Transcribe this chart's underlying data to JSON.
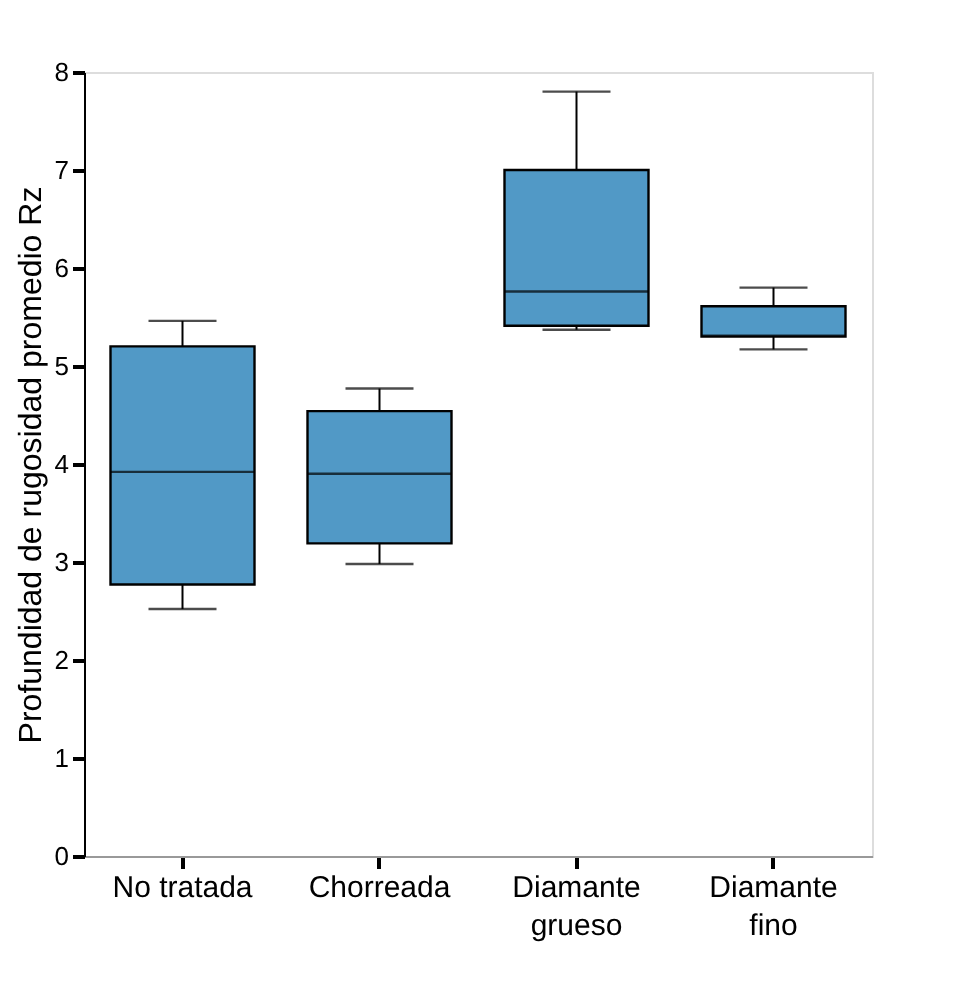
{
  "chart_data": {
    "type": "box",
    "ylabel": "Profundidad de rugosidad promedio Rz",
    "categories": [
      "No tratada",
      "Chorreada",
      "Diamante\ngrueso",
      "Diamante\nfino"
    ],
    "color": "#5199c6",
    "ylim": [
      0,
      8
    ],
    "yticks": [
      0,
      1,
      2,
      3,
      4,
      5,
      6,
      7,
      8
    ],
    "grid": false,
    "boxes": [
      {
        "low": 2.52,
        "q1": 2.77,
        "median": 3.92,
        "q3": 5.2,
        "high": 5.46
      },
      {
        "low": 2.98,
        "q1": 3.19,
        "median": 3.9,
        "q3": 4.54,
        "high": 4.77
      },
      {
        "low": 5.37,
        "q1": 5.41,
        "median": 5.76,
        "q3": 7.0,
        "high": 7.8
      },
      {
        "low": 5.17,
        "q1": 5.3,
        "median": 5.31,
        "q3": 5.61,
        "high": 5.8
      }
    ]
  }
}
